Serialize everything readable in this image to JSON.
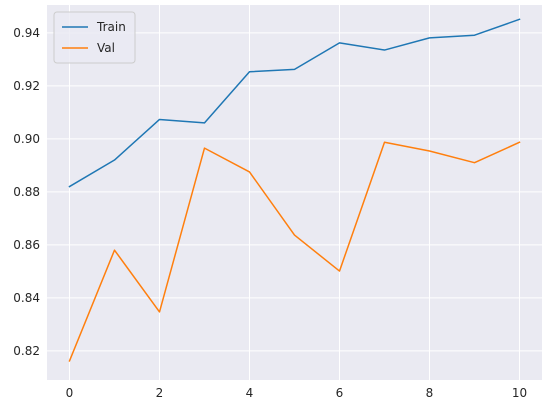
{
  "chart_data": {
    "type": "line",
    "x": [
      0,
      1,
      2,
      3,
      4,
      5,
      6,
      7,
      8,
      9,
      10
    ],
    "series": [
      {
        "name": "Train",
        "color": "#1f77b4",
        "values": [
          0.882,
          0.892,
          0.9073,
          0.906,
          0.9253,
          0.9262,
          0.9362,
          0.9335,
          0.9381,
          0.9391,
          0.9451
        ]
      },
      {
        "name": "Val",
        "color": "#ff7f0e",
        "values": [
          0.8162,
          0.858,
          0.8347,
          0.8965,
          0.8875,
          0.8637,
          0.8501,
          0.8987,
          0.8954,
          0.891,
          0.8987
        ]
      }
    ],
    "xlim": [
      -0.5,
      10.5
    ],
    "ylim": [
      0.809,
      0.9505
    ],
    "xticks": [
      0,
      2,
      4,
      6,
      8,
      10
    ],
    "yticks": [
      0.82,
      0.84,
      0.86,
      0.88,
      0.9,
      0.92,
      0.94
    ],
    "ytick_labels": [
      "0.82",
      "0.84",
      "0.86",
      "0.88",
      "0.90",
      "0.92",
      "0.94"
    ],
    "grid": true,
    "legend_position": "upper-left",
    "background": "#eaeaf2",
    "title": "",
    "xlabel": "",
    "ylabel": ""
  }
}
